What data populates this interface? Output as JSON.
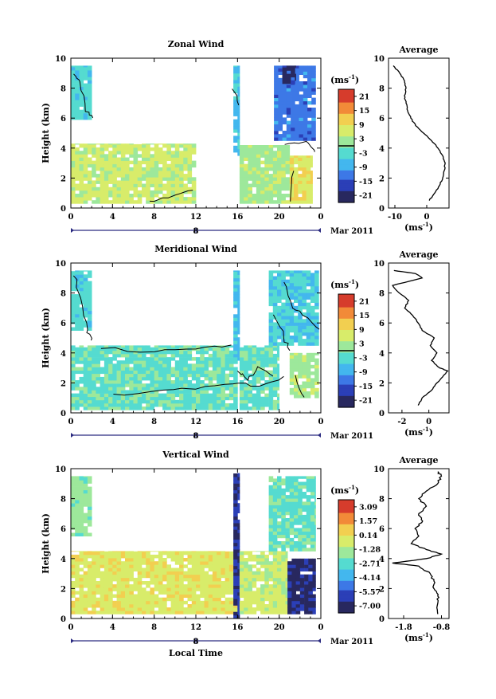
{
  "figure": {
    "xlabel": "Local Time",
    "x_ticks": [
      "0",
      "4",
      "8",
      "12",
      "16",
      "20",
      "0"
    ],
    "date_marker": "8",
    "date_label": "Mar 2011"
  },
  "chart_data": [
    {
      "type": "heatmap",
      "title": "Zonal Wind",
      "ylabel": "Height (km)",
      "y_ticks": [
        "0",
        "2",
        "4",
        "6",
        "8",
        "10"
      ],
      "ylim": [
        0,
        10
      ],
      "xlim": [
        0,
        24
      ],
      "unit_label": "(ms",
      "unit_sup": "-1",
      "colorbar_ticks": [
        "21",
        "15",
        "9",
        "3",
        "-3",
        "-9",
        "-15",
        "-21"
      ],
      "colorbar_range": [
        -24,
        24
      ],
      "zero_contour": true,
      "regions": [
        {
          "x": [
            0,
            2
          ],
          "y": [
            5.9,
            9.5
          ],
          "value": -3
        },
        {
          "x": [
            0,
            12
          ],
          "y": [
            0.3,
            4.3
          ],
          "value": 6
        },
        {
          "x": [
            15.6,
            16.2
          ],
          "y": [
            3.5,
            9.5
          ],
          "value": -6
        },
        {
          "x": [
            16.2,
            21
          ],
          "y": [
            0.3,
            4.2
          ],
          "value": 3
        },
        {
          "x": [
            19.5,
            23.5
          ],
          "y": [
            4.5,
            9.5
          ],
          "value": -12
        },
        {
          "x": [
            20.3,
            21.6
          ],
          "y": [
            8.3,
            9.5
          ],
          "value": -21
        },
        {
          "x": [
            21,
            23.2
          ],
          "y": [
            0.3,
            3.5
          ],
          "value": 9
        }
      ]
    },
    {
      "type": "line",
      "title": "Average",
      "x_ticks": [
        "-10",
        "0"
      ],
      "y_ticks": [
        "0",
        "2",
        "4",
        "6",
        "8",
        "10"
      ],
      "xlim": [
        -12,
        7
      ],
      "ylim": [
        0,
        10
      ],
      "unit_label": "(ms",
      "unit_sup": "-1",
      "profile": {
        "z": [
          0.5,
          1,
          1.5,
          2,
          2.5,
          3,
          3.5,
          4,
          4.5,
          5,
          5.5,
          6,
          6.5,
          7,
          7.5,
          8,
          8.5,
          9,
          9.5
        ],
        "u": [
          0.8,
          2.5,
          4,
          5,
          5.5,
          5.8,
          5,
          3.5,
          1.5,
          -1,
          -3.5,
          -5,
          -6,
          -6.5,
          -7,
          -6.5,
          -7,
          -8.5,
          -10.5
        ]
      }
    },
    {
      "type": "heatmap",
      "title": "Meridional Wind",
      "ylabel": "Height (km)",
      "y_ticks": [
        "0",
        "2",
        "4",
        "6",
        "8",
        "10"
      ],
      "ylim": [
        0,
        10
      ],
      "xlim": [
        0,
        24
      ],
      "unit_label": "(ms",
      "unit_sup": "-1",
      "colorbar_ticks": [
        "21",
        "15",
        "9",
        "3",
        "-3",
        "-9",
        "-15",
        "-21"
      ],
      "colorbar_range": [
        -24,
        24
      ],
      "zero_contour": true,
      "regions": [
        {
          "x": [
            0,
            2
          ],
          "y": [
            5.5,
            9.5
          ],
          "value": -3
        },
        {
          "x": [
            0,
            16
          ],
          "y": [
            0.2,
            4.5
          ],
          "value": -1
        },
        {
          "x": [
            15.6,
            16.2
          ],
          "y": [
            3.5,
            9.5
          ],
          "value": -6
        },
        {
          "x": [
            16.2,
            20
          ],
          "y": [
            0.2,
            4.5
          ],
          "value": -1
        },
        {
          "x": [
            19,
            23.8
          ],
          "y": [
            4.5,
            9.5
          ],
          "value": -4
        },
        {
          "x": [
            21,
            23.8
          ],
          "y": [
            1,
            4
          ],
          "value": 3
        }
      ]
    },
    {
      "type": "line",
      "title": "Average",
      "x_ticks": [
        "-2",
        "0"
      ],
      "y_ticks": [
        "0",
        "2",
        "4",
        "6",
        "8",
        "10"
      ],
      "xlim": [
        -3,
        1.5
      ],
      "ylim": [
        0,
        10
      ],
      "unit_label": "(ms",
      "unit_sup": "-1",
      "profile": {
        "z": [
          0.5,
          1,
          1.5,
          2,
          2.5,
          2.8,
          3,
          3.5,
          4,
          4.5,
          5,
          5.5,
          6,
          6.5,
          7,
          7.5,
          8,
          8.5,
          9,
          9.3,
          9.5
        ],
        "u": [
          -0.8,
          -0.5,
          0.2,
          0.6,
          1.1,
          1.4,
          0.8,
          0.2,
          0.6,
          0.1,
          0.4,
          -0.5,
          -0.8,
          -1.2,
          -1.8,
          -1.5,
          -2.2,
          -2.7,
          -0.5,
          -1,
          -2.6
        ]
      }
    },
    {
      "type": "heatmap",
      "title": "Vertical Wind",
      "ylabel": "Height (km)",
      "y_ticks": [
        "0",
        "2",
        "4",
        "6",
        "8",
        "10"
      ],
      "ylim": [
        0,
        10
      ],
      "xlim": [
        0,
        24
      ],
      "unit_label": "(ms",
      "unit_sup": "-1",
      "colorbar_ticks": [
        "3.09",
        "1.57",
        "0.14",
        "-1.28",
        "-2.71",
        "-4.14",
        "-5.57",
        "-7.00"
      ],
      "colorbar_range": [
        -7.7,
        3.8
      ],
      "zero_contour": false,
      "regions": [
        {
          "x": [
            0,
            2
          ],
          "y": [
            5.5,
            9.5
          ],
          "value": -1.5
        },
        {
          "x": [
            0,
            16
          ],
          "y": [
            0.3,
            4.5
          ],
          "value": 0
        },
        {
          "x": [
            15.6,
            16.2
          ],
          "y": [
            0,
            9.7
          ],
          "value": -6.5
        },
        {
          "x": [
            16.2,
            20.8
          ],
          "y": [
            0.3,
            4.5
          ],
          "value": -0.5
        },
        {
          "x": [
            19,
            23.5
          ],
          "y": [
            4.5,
            9.5
          ],
          "value": -2.2
        },
        {
          "x": [
            20.8,
            23.5
          ],
          "y": [
            0.3,
            4
          ],
          "value": -6.8
        }
      ]
    },
    {
      "type": "line",
      "title": "Average",
      "x_ticks": [
        "-1.8",
        "-0.8"
      ],
      "y_ticks": [
        "0",
        "2",
        "4",
        "6",
        "8",
        "10"
      ],
      "xlim": [
        -2.2,
        -0.6
      ],
      "ylim": [
        0,
        10
      ],
      "unit_label": "(ms",
      "unit_sup": "-1",
      "profile": {
        "z": [
          0.3,
          1,
          1.5,
          2,
          2.5,
          3,
          3.5,
          3.7,
          4,
          4.3,
          4.6,
          5,
          5.5,
          6,
          6.5,
          7,
          7.5,
          8,
          8.5,
          9,
          9.5,
          9.8
        ],
        "u": [
          -0.9,
          -0.9,
          -0.9,
          -1.0,
          -1.0,
          -1.1,
          -1.4,
          -2.1,
          -1.2,
          -0.8,
          -1.2,
          -1.6,
          -1.4,
          -1.5,
          -1.3,
          -1.4,
          -1.2,
          -1.4,
          -1.2,
          -0.9,
          -0.8,
          -0.9
        ]
      }
    }
  ]
}
